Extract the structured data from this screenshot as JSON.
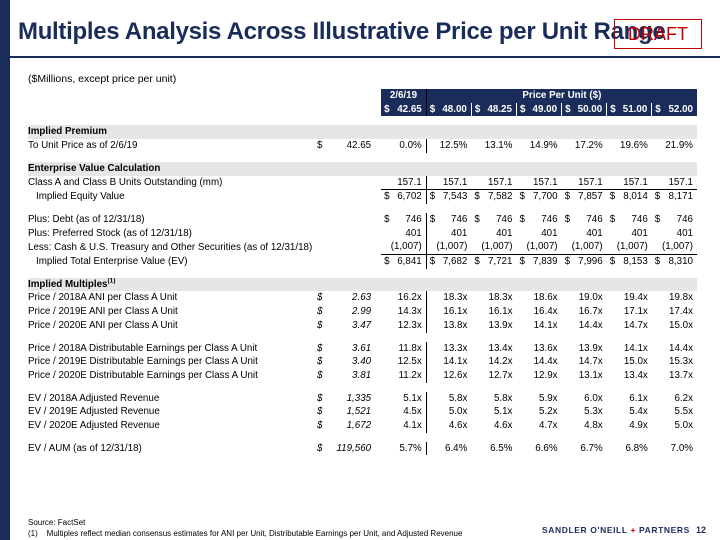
{
  "title": "Multiples Analysis Across Illustrative Price per Unit Range",
  "draft_label": "DRAFT",
  "subtitle": "($Millions, except price per unit)",
  "header": {
    "date_label": "2/6/19",
    "range_label": "Price Per Unit ($)",
    "price_cells": [
      {
        "sym": "$",
        "val": "42.65"
      },
      {
        "sym": "$",
        "val": "48.00"
      },
      {
        "sym": "$",
        "val": "48.25"
      },
      {
        "sym": "$",
        "val": "49.00"
      },
      {
        "sym": "$",
        "val": "50.00"
      },
      {
        "sym": "$",
        "val": "51.00"
      },
      {
        "sym": "$",
        "val": "52.00"
      }
    ]
  },
  "sections": {
    "implied_premium": "Implied Premium",
    "ev_calc": "Enterprise Value Calculation",
    "implied_multiples": "Implied Multiples",
    "implied_multiples_note": "(1)"
  },
  "rows": {
    "premium": {
      "label": "To Unit Price as of 2/6/19",
      "sym": "$",
      "ref": "42.65",
      "vals": [
        "0.0%",
        "12.5%",
        "13.1%",
        "14.9%",
        "17.2%",
        "19.6%",
        "21.9%"
      ]
    },
    "units": {
      "label": "Class A and Class B Units Outstanding (mm)",
      "vals": [
        "157.1",
        "157.1",
        "157.1",
        "157.1",
        "157.1",
        "157.1",
        "157.1"
      ]
    },
    "equity": {
      "label": "Implied Equity Value",
      "sym": "$",
      "vals": [
        "6,702",
        "7,543",
        "7,582",
        "7,700",
        "7,857",
        "8,014",
        "8,171"
      ]
    },
    "debt": {
      "label": "Plus: Debt (as of 12/31/18)",
      "sym": "$",
      "vals": [
        "746",
        "746",
        "746",
        "746",
        "746",
        "746",
        "746"
      ]
    },
    "preferred": {
      "label": "Plus: Preferred Stock (as of 12/31/18)",
      "vals": [
        "401",
        "401",
        "401",
        "401",
        "401",
        "401",
        "401"
      ]
    },
    "cash": {
      "label": "Less: Cash & U.S. Treasury and Other Securities (as of 12/31/18)",
      "vals": [
        "(1,007)",
        "(1,007)",
        "(1,007)",
        "(1,007)",
        "(1,007)",
        "(1,007)",
        "(1,007)"
      ]
    },
    "tev": {
      "label": "Implied Total Enterprise Value (EV)",
      "sym": "$",
      "vals": [
        "6,841",
        "7,682",
        "7,721",
        "7,839",
        "7,996",
        "8,153",
        "8,310"
      ]
    },
    "ani18": {
      "label": "Price / 2018A ANI per Class A Unit",
      "sym": "$",
      "ref": "2.63",
      "vals": [
        "16.2x",
        "18.3x",
        "18.3x",
        "18.6x",
        "19.0x",
        "19.4x",
        "19.8x"
      ]
    },
    "ani19": {
      "label": "Price / 2019E ANI per Class A Unit",
      "sym": "$",
      "ref": "2.99",
      "vals": [
        "14.3x",
        "16.1x",
        "16.1x",
        "16.4x",
        "16.7x",
        "17.1x",
        "17.4x"
      ]
    },
    "ani20": {
      "label": "Price / 2020E ANI per Class A Unit",
      "sym": "$",
      "ref": "3.47",
      "vals": [
        "12.3x",
        "13.8x",
        "13.9x",
        "14.1x",
        "14.4x",
        "14.7x",
        "15.0x"
      ]
    },
    "de18": {
      "label": "Price / 2018A Distributable Earnings per Class A Unit",
      "sym": "$",
      "ref": "3.61",
      "vals": [
        "11.8x",
        "13.3x",
        "13.4x",
        "13.6x",
        "13.9x",
        "14.1x",
        "14.4x"
      ]
    },
    "de19": {
      "label": "Price / 2019E Distributable Earnings per Class A Unit",
      "sym": "$",
      "ref": "3.40",
      "vals": [
        "12.5x",
        "14.1x",
        "14.2x",
        "14.4x",
        "14.7x",
        "15.0x",
        "15.3x"
      ]
    },
    "de20": {
      "label": "Price / 2020E Distributable Earnings per Class A Unit",
      "sym": "$",
      "ref": "3.81",
      "vals": [
        "11.2x",
        "12.6x",
        "12.7x",
        "12.9x",
        "13.1x",
        "13.4x",
        "13.7x"
      ]
    },
    "rev18": {
      "label": "EV / 2018A Adjusted Revenue",
      "sym": "$",
      "ref": "1,335",
      "vals": [
        "5.1x",
        "5.8x",
        "5.8x",
        "5.9x",
        "6.0x",
        "6.1x",
        "6.2x"
      ]
    },
    "rev19": {
      "label": "EV / 2019E Adjusted Revenue",
      "sym": "$",
      "ref": "1,521",
      "vals": [
        "4.5x",
        "5.0x",
        "5.1x",
        "5.2x",
        "5.3x",
        "5.4x",
        "5.5x"
      ]
    },
    "rev20": {
      "label": "EV / 2020E Adjusted Revenue",
      "sym": "$",
      "ref": "1,672",
      "vals": [
        "4.1x",
        "4.6x",
        "4.6x",
        "4.7x",
        "4.8x",
        "4.9x",
        "5.0x"
      ]
    },
    "aum": {
      "label": "EV / AUM (as of 12/31/18)",
      "sym": "$",
      "ref": "119,560",
      "vals": [
        "5.7%",
        "6.4%",
        "6.5%",
        "6.6%",
        "6.7%",
        "6.8%",
        "7.0%"
      ]
    }
  },
  "footer": {
    "source": "Source: FactSet",
    "note_marker": "(1)",
    "note": "Multiples reflect median consensus estimates for ANI per Unit, Distributable Earnings per Unit, and Adjusted Revenue",
    "brand_left": "SANDLER O'NEILL",
    "brand_plus": "+",
    "brand_right": "PARTNERS",
    "page_number": "12"
  },
  "colors": {
    "navy": "#1a2d5a",
    "draft_red": "#c00000",
    "section_gray": "#e6e6e6"
  }
}
